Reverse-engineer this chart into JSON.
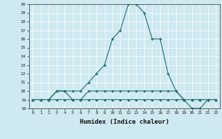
{
  "xlabel": "Humidex (Indice chaleur)",
  "ylabel": "",
  "x": [
    0,
    1,
    2,
    3,
    4,
    5,
    6,
    7,
    8,
    9,
    10,
    11,
    12,
    13,
    14,
    15,
    16,
    17,
    18,
    19,
    20,
    21,
    22,
    23
  ],
  "line1": [
    19,
    19,
    19,
    20,
    20,
    20,
    20,
    21,
    22,
    23,
    26,
    27,
    30,
    30,
    29,
    26,
    26,
    22,
    20,
    19,
    19,
    19,
    19,
    19
  ],
  "line2": [
    19,
    19,
    19,
    20,
    20,
    19,
    19,
    20,
    20,
    20,
    20,
    20,
    20,
    20,
    20,
    20,
    20,
    20,
    20,
    19,
    19,
    19,
    19,
    19
  ],
  "line3": [
    19,
    19,
    19,
    19,
    19,
    19,
    19,
    19,
    19,
    19,
    19,
    19,
    19,
    19,
    19,
    19,
    19,
    19,
    19,
    19,
    18,
    18,
    19,
    19
  ],
  "bg_color": "#cfe9f0",
  "line_color": "#1a6b6b",
  "ylim_min": 18,
  "ylim_max": 30,
  "xlim_min": -0.5,
  "xlim_max": 23.5
}
